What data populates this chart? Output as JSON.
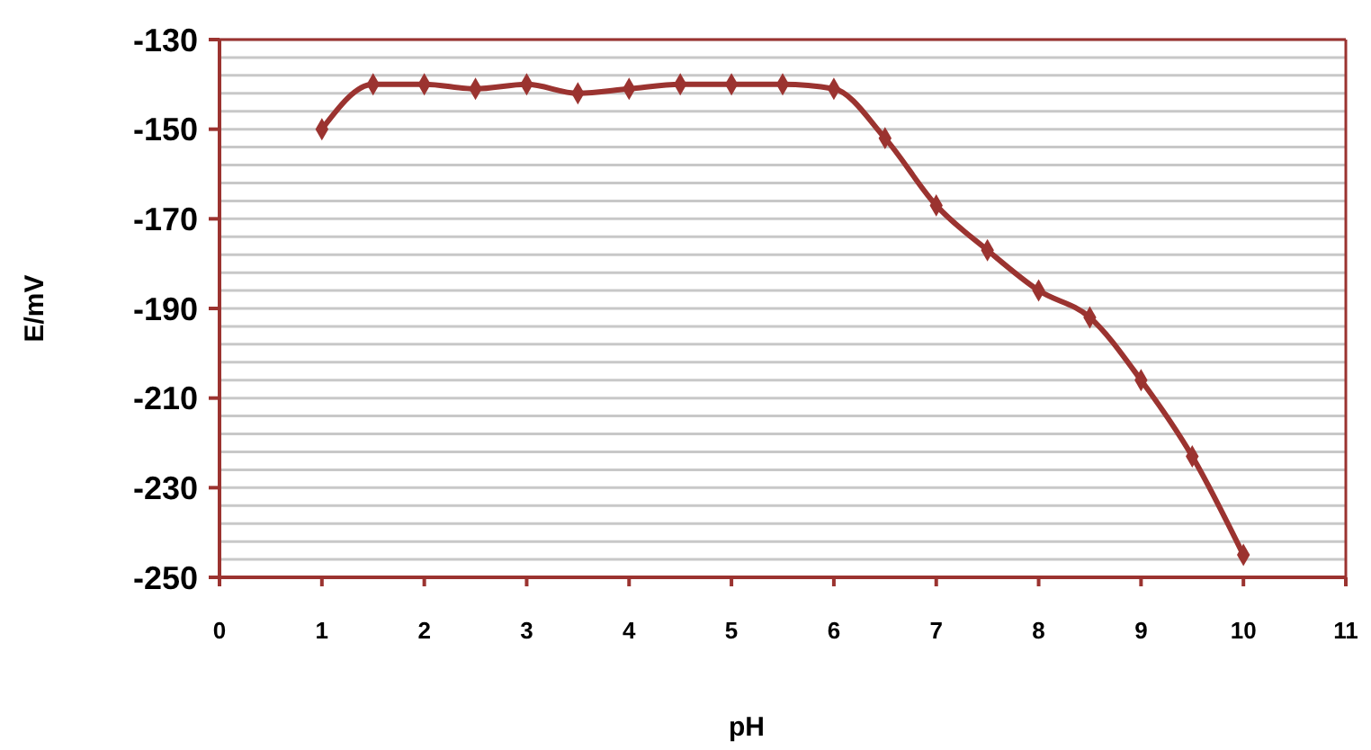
{
  "chart_data": {
    "type": "line",
    "xlabel": "pH",
    "ylabel": "E/mV",
    "x": [
      1,
      1.5,
      2,
      2.5,
      3,
      3.5,
      4,
      4.5,
      5,
      5.5,
      6,
      6.5,
      7,
      7.5,
      8,
      8.5,
      9,
      9.5,
      10
    ],
    "series": [
      {
        "color": "#9b3330",
        "values": [
          -150,
          -140,
          -140,
          -141,
          -140,
          -142,
          -141,
          -140,
          -140,
          -140,
          -141,
          -152,
          -167,
          -177,
          -186,
          -192,
          -206,
          -223,
          -245
        ]
      }
    ],
    "xlim": [
      0,
      11
    ],
    "xticks": [
      0,
      1,
      2,
      3,
      4,
      5,
      6,
      7,
      8,
      9,
      10,
      11
    ],
    "ylim": [
      -250,
      -130
    ],
    "yticks": [
      -250,
      {
        "value": -246,
        "label": null
      },
      {
        "value": -242,
        "label": null
      },
      {
        "value": -238,
        "label": null
      },
      {
        "value": -234,
        "label": null
      },
      -230,
      {
        "value": -226,
        "label": null
      },
      {
        "value": -222,
        "label": null
      },
      {
        "value": -218,
        "label": null
      },
      {
        "value": -214,
        "label": null
      },
      -210,
      {
        "value": -206,
        "label": null
      },
      {
        "value": -202,
        "label": null
      },
      {
        "value": -198,
        "label": null
      },
      {
        "value": -194,
        "label": null
      },
      -190,
      {
        "value": -186,
        "label": null
      },
      {
        "value": -182,
        "label": null
      },
      {
        "value": -178,
        "label": null
      },
      {
        "value": -174,
        "label": null
      },
      -170,
      {
        "value": -166,
        "label": null
      },
      {
        "value": -162,
        "label": null
      },
      {
        "value": -158,
        "label": null
      },
      {
        "value": -154,
        "label": null
      },
      -150,
      {
        "value": -146,
        "label": null
      },
      {
        "value": -142,
        "label": null
      },
      {
        "value": -138,
        "label": null
      },
      {
        "value": -134,
        "label": null
      },
      -130
    ],
    "grid": "y",
    "marker": "diamond",
    "line_style": "solid"
  }
}
